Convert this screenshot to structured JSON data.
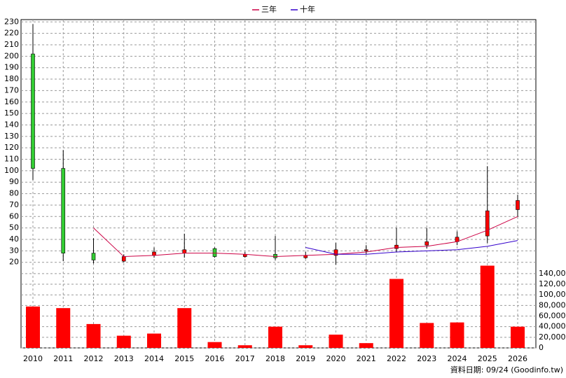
{
  "chart_data": {
    "type": "candlestick",
    "categories": [
      "2010",
      "2011",
      "2012",
      "2013",
      "2014",
      "2015",
      "2016",
      "2017",
      "2018",
      "2019",
      "2020",
      "2021",
      "2022",
      "2023",
      "2024",
      "2025",
      "2026"
    ],
    "open": [
      202,
      102,
      28,
      21,
      26,
      28,
      32,
      25,
      27,
      24,
      26,
      30,
      32,
      35,
      38,
      43,
      66
    ],
    "high": [
      228,
      118,
      41,
      27,
      33,
      45,
      33,
      29,
      43,
      29,
      37,
      35,
      50,
      50,
      47,
      104,
      79
    ],
    "low": [
      92,
      21,
      19,
      20,
      24,
      24,
      24,
      24,
      22,
      23,
      18,
      27,
      29,
      32,
      35,
      37,
      60
    ],
    "close": [
      102,
      28,
      22,
      25,
      29,
      31,
      25,
      27,
      24,
      26,
      31,
      31,
      35,
      38,
      42,
      65,
      74
    ],
    "up_color": "#ff0000",
    "down_color": "#33cc33",
    "series": [
      {
        "name": "三年",
        "color": "#cc0044",
        "values": [
          null,
          null,
          50,
          25,
          26,
          28,
          28,
          27,
          25,
          26,
          27,
          29,
          33,
          34,
          38,
          48,
          60
        ]
      },
      {
        "name": "十年",
        "color": "#3300cc",
        "values": [
          null,
          null,
          null,
          null,
          null,
          null,
          null,
          null,
          null,
          33,
          27,
          27,
          29,
          30,
          31,
          34,
          39
        ]
      }
    ],
    "volume": {
      "color": "#ff0000",
      "values": [
        78000,
        75000,
        45000,
        23000,
        27000,
        75000,
        11000,
        5000,
        40000,
        5000,
        25000,
        9000,
        130000,
        47000,
        48000,
        155000,
        40000
      ]
    },
    "ylim": [
      18,
      232
    ],
    "yticks": [
      20,
      30,
      40,
      50,
      60,
      70,
      80,
      90,
      100,
      110,
      120,
      130,
      140,
      150,
      160,
      170,
      180,
      190,
      200,
      210,
      220,
      230
    ],
    "y2lim": [
      0,
      157000
    ],
    "y2ticks": [
      0,
      {
        "value": 20000,
        "label": "20,000"
      },
      {
        "value": 40000,
        "label": "40,000"
      },
      {
        "value": 60000,
        "label": "60,000"
      },
      {
        "value": 80000,
        "label": "80,000"
      },
      {
        "value": 100000,
        "label": "100,000"
      },
      {
        "value": 120000,
        "label": "120,000"
      },
      {
        "value": 140000,
        "label": "140,000"
      }
    ],
    "grid": true,
    "source": "資料日期: 09/24 (Goodinfo.tw)"
  }
}
